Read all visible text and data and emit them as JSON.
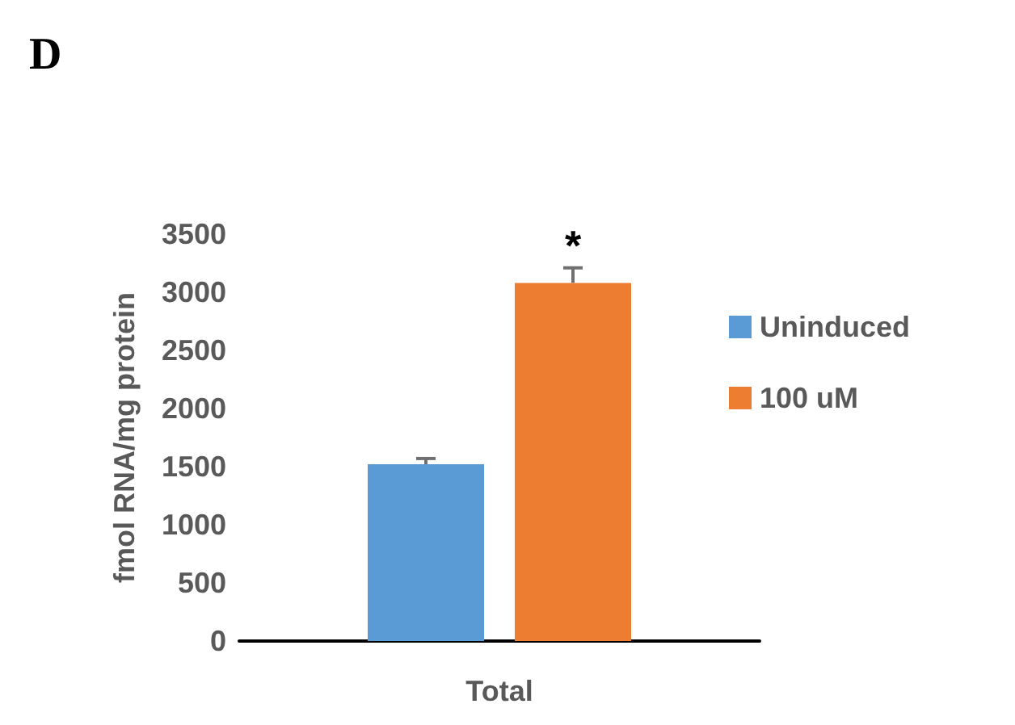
{
  "chart_data": {
    "type": "bar",
    "categories": [
      "Total"
    ],
    "ylabel": "fmol RNA/mg protein",
    "ylim": [
      0,
      3500
    ],
    "yticks": [
      0,
      500,
      1000,
      1500,
      2000,
      2500,
      3000,
      3500
    ],
    "grid": false,
    "legend": "right",
    "annotations": [
      "D",
      "*"
    ],
    "series": [
      {
        "name": "Uninduced",
        "color": "#5b9bd5",
        "values": [
          1520
        ],
        "errors": [
          [
            1520,
            1570
          ]
        ]
      },
      {
        "name": "100 uM",
        "color": "#ed7d31",
        "values": [
          3080
        ],
        "errors": [
          [
            3080,
            3210
          ]
        ]
      }
    ]
  }
}
